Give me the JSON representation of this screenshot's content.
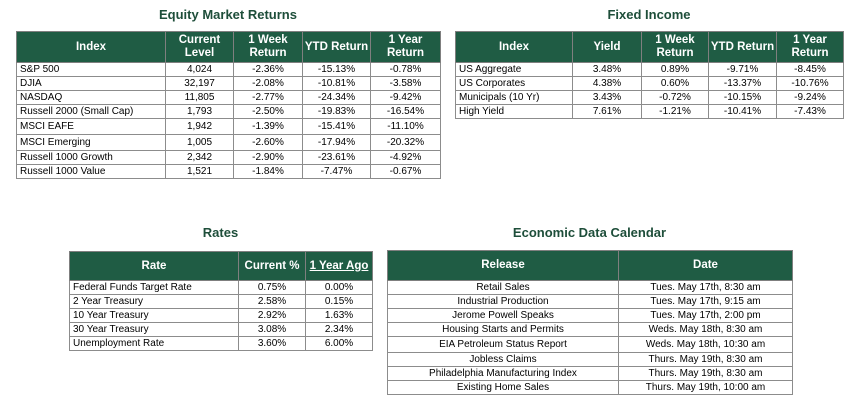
{
  "equity": {
    "title": "Equity Market Returns",
    "headers": [
      "Index",
      "Current Level",
      "1 Week Return",
      "YTD Return",
      "1 Year Return"
    ],
    "rows": [
      [
        "S&P 500",
        "4,024",
        "-2.36%",
        "-15.13%",
        "-0.78%"
      ],
      [
        "DJIA",
        "32,197",
        "-2.08%",
        "-10.81%",
        "-3.58%"
      ],
      [
        "NASDAQ",
        "11,805",
        "-2.77%",
        "-24.34%",
        "-9.42%"
      ],
      [
        "Russell 2000 (Small Cap)",
        "1,793",
        "-2.50%",
        "-19.83%",
        "-16.54%"
      ],
      [
        "MSCI EAFE",
        "1,942",
        "-1.39%",
        "-15.41%",
        "-11.10%"
      ],
      [
        "MSCI Emerging",
        "1,005",
        "-2.60%",
        "-17.94%",
        "-20.32%"
      ],
      [
        "Russell 1000 Growth",
        "2,342",
        "-2.90%",
        "-23.61%",
        "-4.92%"
      ],
      [
        "Russell 1000 Value",
        "1,521",
        "-1.84%",
        "-7.47%",
        "-0.67%"
      ]
    ]
  },
  "fixed_income": {
    "title": "Fixed Income",
    "headers": [
      "Index",
      "Yield",
      "1 Week Return",
      "YTD Return",
      "1 Year Return"
    ],
    "rows": [
      [
        "US Aggregate",
        "3.48%",
        "0.89%",
        "-9.71%",
        "-8.45%"
      ],
      [
        "US Corporates",
        "4.38%",
        "0.60%",
        "-13.37%",
        "-10.76%"
      ],
      [
        "Municipals (10 Yr)",
        "3.43%",
        "-0.72%",
        "-10.15%",
        "-9.24%"
      ],
      [
        "High Yield",
        "7.61%",
        "-1.21%",
        "-10.41%",
        "-7.43%"
      ]
    ]
  },
  "rates": {
    "title": "Rates",
    "headers": [
      "Rate",
      "Current %",
      "1 Year Ago"
    ],
    "rows": [
      [
        "Federal Funds Target Rate",
        "0.75%",
        "0.00%"
      ],
      [
        "2 Year Treasury",
        "2.58%",
        "0.15%"
      ],
      [
        "10 Year Treasury",
        "2.92%",
        "1.63%"
      ],
      [
        "30 Year Treasury",
        "3.08%",
        "2.34%"
      ],
      [
        "Unemployment Rate",
        "3.60%",
        "6.00%"
      ]
    ]
  },
  "economic_calendar": {
    "title": "Economic Data Calendar",
    "headers": [
      "Release",
      "Date"
    ],
    "rows": [
      [
        "Retail Sales",
        "Tues. May 17th, 8:30 am"
      ],
      [
        "Industrial Production",
        "Tues. May 17th, 9:15 am"
      ],
      [
        "Jerome Powell Speaks",
        "Tues. May 17th, 2:00 pm"
      ],
      [
        "Housing Starts and Permits",
        "Weds. May 18th, 8:30 am"
      ],
      [
        "EIA Petroleum Status Report",
        "Weds. May 18th, 10:30 am"
      ],
      [
        "Jobless Claims",
        "Thurs. May 19th, 8:30 am"
      ],
      [
        "Philadelphia Manufacturing Index",
        "Thurs. May 19th, 8:30 am"
      ],
      [
        "Existing Home Sales",
        "Thurs. May 19th, 10:00 am"
      ]
    ]
  },
  "colors": {
    "header_bg": "#1f5c44",
    "title_text": "#1e4e3a"
  }
}
